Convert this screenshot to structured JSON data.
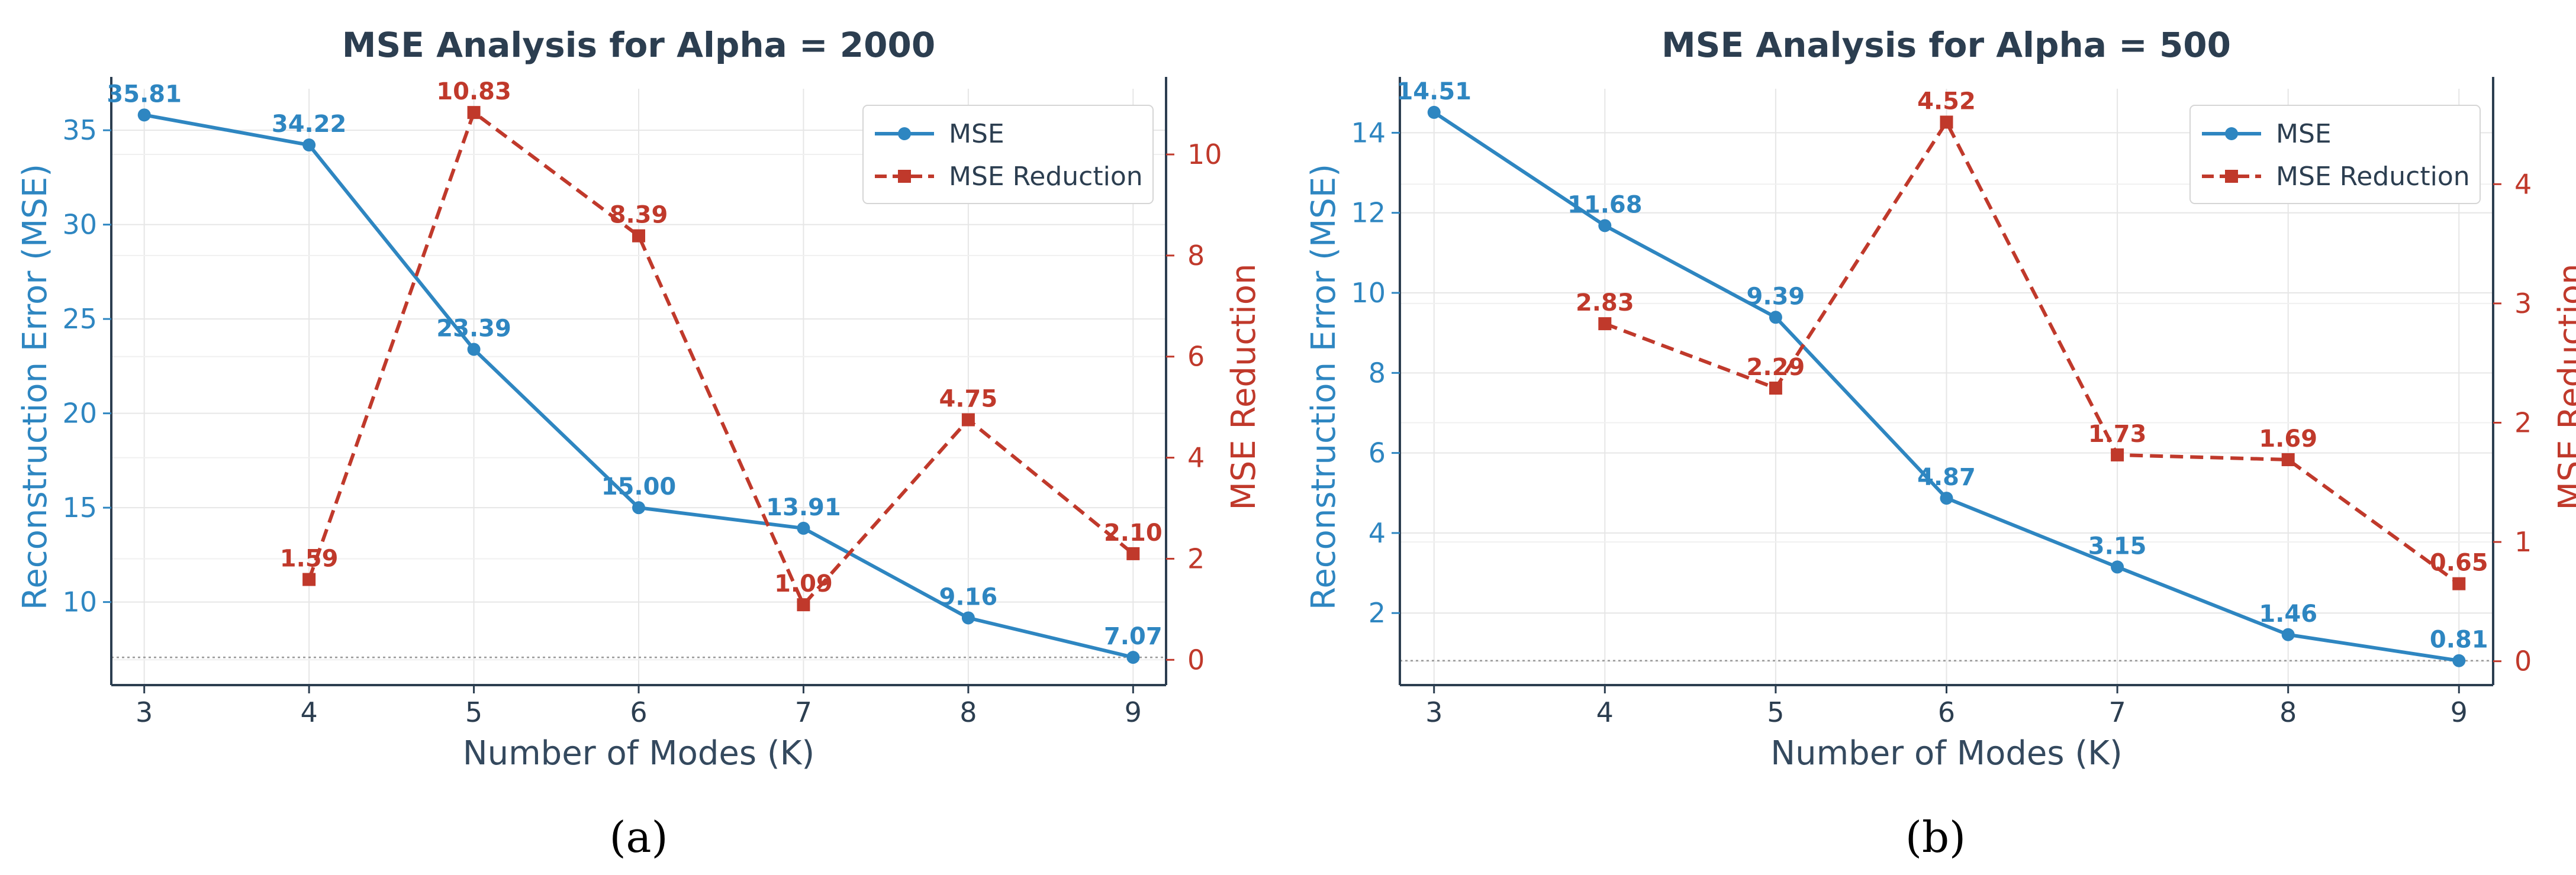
{
  "colors": {
    "mse": "#2e86c1",
    "reduction": "#c0392b",
    "axis": "#2c3e50",
    "grid": "#e6e6e6",
    "refline": "#999999"
  },
  "chart_data": [
    {
      "type": "line",
      "caption": "(a)",
      "title": "MSE Analysis for Alpha = 2000",
      "xlabel": "Number of Modes (K)",
      "ylabel": "Reconstruction Error (MSE)",
      "y2label": "MSE Reduction",
      "categories": [
        3,
        4,
        5,
        6,
        7,
        8,
        9
      ],
      "xlim": [
        2.8,
        9.2
      ],
      "ylim": [
        5.6,
        37.2
      ],
      "y2lim": [
        -0.5,
        11.3
      ],
      "yticks": [
        10,
        15,
        20,
        25,
        30,
        35
      ],
      "y2ticks": [
        0,
        2,
        4,
        6,
        8,
        10
      ],
      "legend_position": "top-right",
      "baseline": 7.07,
      "series": [
        {
          "name": "MSE",
          "axis": "left",
          "style": "solid-circle",
          "x": [
            3,
            4,
            5,
            6,
            7,
            8,
            9
          ],
          "values": [
            35.81,
            34.22,
            23.39,
            15.0,
            13.91,
            9.16,
            7.07
          ],
          "labels": [
            "35.81",
            "34.22",
            "23.39",
            "15.00",
            "13.91",
            "9.16",
            "7.07"
          ]
        },
        {
          "name": "MSE Reduction",
          "axis": "right",
          "style": "dashed-square",
          "x": [
            4,
            5,
            6,
            7,
            8,
            9
          ],
          "values": [
            1.59,
            10.83,
            8.39,
            1.09,
            4.75,
            2.1
          ],
          "labels": [
            "1.59",
            "10.83",
            "8.39",
            "1.09",
            "4.75",
            "2.10"
          ]
        }
      ]
    },
    {
      "type": "line",
      "caption": "(b)",
      "title": "MSE Analysis for Alpha = 500",
      "xlabel": "Number of Modes (K)",
      "ylabel": "Reconstruction Error (MSE)",
      "y2label": "MSE Reduction",
      "categories": [
        3,
        4,
        5,
        6,
        7,
        8,
        9
      ],
      "xlim": [
        2.8,
        9.2
      ],
      "ylim": [
        0.2,
        15.1
      ],
      "y2lim": [
        -0.2,
        4.8
      ],
      "yticks": [
        2,
        4,
        6,
        8,
        10,
        12,
        14
      ],
      "y2ticks": [
        0,
        1,
        2,
        3,
        4
      ],
      "legend_position": "top-right",
      "baseline": 0.81,
      "series": [
        {
          "name": "MSE",
          "axis": "left",
          "style": "solid-circle",
          "x": [
            3,
            4,
            5,
            6,
            7,
            8,
            9
          ],
          "values": [
            14.51,
            11.68,
            9.39,
            4.87,
            3.15,
            1.46,
            0.81
          ],
          "labels": [
            "14.51",
            "11.68",
            "9.39",
            "4.87",
            "3.15",
            "1.46",
            "0.81"
          ]
        },
        {
          "name": "MSE Reduction",
          "axis": "right",
          "style": "dashed-square",
          "x": [
            4,
            5,
            6,
            7,
            8,
            9
          ],
          "values": [
            2.83,
            2.29,
            4.52,
            1.73,
            1.69,
            0.65
          ],
          "labels": [
            "2.83",
            "2.29",
            "4.52",
            "1.73",
            "1.69",
            "0.65"
          ]
        }
      ]
    }
  ]
}
